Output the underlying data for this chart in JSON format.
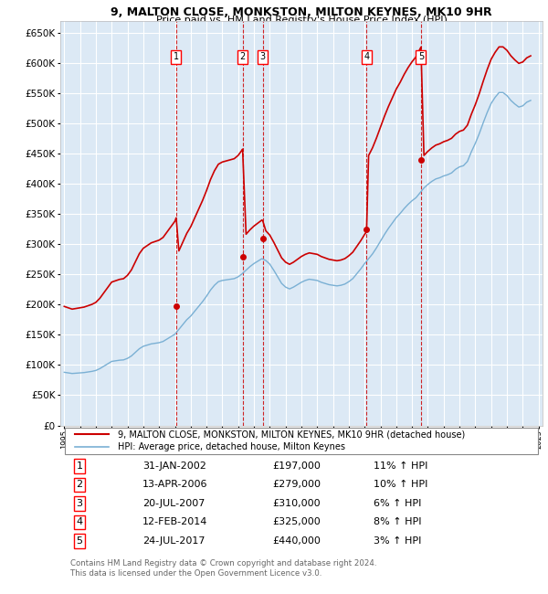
{
  "title": "9, MALTON CLOSE, MONKSTON, MILTON KEYNES, MK10 9HR",
  "subtitle": "Price paid vs. HM Land Registry's House Price Index (HPI)",
  "ylim": [
    0,
    670000
  ],
  "yticks": [
    0,
    50000,
    100000,
    150000,
    200000,
    250000,
    300000,
    350000,
    400000,
    450000,
    500000,
    550000,
    600000,
    650000
  ],
  "xlim_start": 1994.75,
  "xlim_end": 2025.25,
  "plot_bg": "#dce9f5",
  "grid_color": "#ffffff",
  "sale_color": "#cc0000",
  "hpi_color": "#7ab0d4",
  "transactions": [
    {
      "num": 1,
      "date_dec": 2002.08,
      "price": 197000
    },
    {
      "num": 2,
      "date_dec": 2006.28,
      "price": 279000
    },
    {
      "num": 3,
      "date_dec": 2007.55,
      "price": 310000
    },
    {
      "num": 4,
      "date_dec": 2014.12,
      "price": 325000
    },
    {
      "num": 5,
      "date_dec": 2017.56,
      "price": 440000
    }
  ],
  "table_rows": [
    {
      "num": 1,
      "date": "31-JAN-2002",
      "price": "£197,000",
      "hpi": "11% ↑ HPI"
    },
    {
      "num": 2,
      "date": "13-APR-2006",
      "price": "£279,000",
      "hpi": "10% ↑ HPI"
    },
    {
      "num": 3,
      "date": "20-JUL-2007",
      "price": "£310,000",
      "hpi": "6% ↑ HPI"
    },
    {
      "num": 4,
      "date": "12-FEB-2014",
      "price": "£325,000",
      "hpi": "8% ↑ HPI"
    },
    {
      "num": 5,
      "date": "24-JUL-2017",
      "price": "£440,000",
      "hpi": "3% ↑ HPI"
    }
  ],
  "legend_house": "9, MALTON CLOSE, MONKSTON, MILTON KEYNES, MK10 9HR (detached house)",
  "legend_hpi": "HPI: Average price, detached house, Milton Keynes",
  "footer": "Contains HM Land Registry data © Crown copyright and database right 2024.\nThis data is licensed under the Open Government Licence v3.0.",
  "hpi_data": {
    "years": [
      1995.0,
      1995.25,
      1995.5,
      1995.75,
      1996.0,
      1996.25,
      1996.5,
      1996.75,
      1997.0,
      1997.25,
      1997.5,
      1997.75,
      1998.0,
      1998.25,
      1998.5,
      1998.75,
      1999.0,
      1999.25,
      1999.5,
      1999.75,
      2000.0,
      2000.25,
      2000.5,
      2000.75,
      2001.0,
      2001.25,
      2001.5,
      2001.75,
      2002.0,
      2002.25,
      2002.5,
      2002.75,
      2003.0,
      2003.25,
      2003.5,
      2003.75,
      2004.0,
      2004.25,
      2004.5,
      2004.75,
      2005.0,
      2005.25,
      2005.5,
      2005.75,
      2006.0,
      2006.25,
      2006.5,
      2006.75,
      2007.0,
      2007.25,
      2007.5,
      2007.75,
      2008.0,
      2008.25,
      2008.5,
      2008.75,
      2009.0,
      2009.25,
      2009.5,
      2009.75,
      2010.0,
      2010.25,
      2010.5,
      2010.75,
      2011.0,
      2011.25,
      2011.5,
      2011.75,
      2012.0,
      2012.25,
      2012.5,
      2012.75,
      2013.0,
      2013.25,
      2013.5,
      2013.75,
      2014.0,
      2014.25,
      2014.5,
      2014.75,
      2015.0,
      2015.25,
      2015.5,
      2015.75,
      2016.0,
      2016.25,
      2016.5,
      2016.75,
      2017.0,
      2017.25,
      2017.5,
      2017.75,
      2018.0,
      2018.25,
      2018.5,
      2018.75,
      2019.0,
      2019.25,
      2019.5,
      2019.75,
      2020.0,
      2020.25,
      2020.5,
      2020.75,
      2021.0,
      2021.25,
      2021.5,
      2021.75,
      2022.0,
      2022.25,
      2022.5,
      2022.75,
      2023.0,
      2023.25,
      2023.5,
      2023.75,
      2024.0,
      2024.25,
      2024.5
    ],
    "values": [
      88000,
      87000,
      86000,
      86500,
      87000,
      87500,
      88500,
      89500,
      91000,
      94000,
      98000,
      102000,
      106000,
      107000,
      108000,
      108500,
      111000,
      115000,
      121000,
      127000,
      131000,
      133000,
      135000,
      136000,
      137000,
      139000,
      143000,
      147000,
      151000,
      159000,
      167000,
      175000,
      181000,
      189000,
      197000,
      205000,
      214000,
      224000,
      232000,
      238000,
      240000,
      241000,
      242000,
      243000,
      246000,
      251000,
      257000,
      263000,
      268000,
      272000,
      276000,
      273000,
      267000,
      257000,
      246000,
      235000,
      229000,
      226000,
      229000,
      233000,
      237000,
      240000,
      242000,
      241000,
      240000,
      237000,
      235000,
      233000,
      232000,
      231000,
      232000,
      234000,
      238000,
      243000,
      251000,
      259000,
      268000,
      276000,
      284000,
      294000,
      305000,
      316000,
      326000,
      335000,
      344000,
      351000,
      359000,
      366000,
      372000,
      377000,
      385000,
      393000,
      399000,
      404000,
      408000,
      410000,
      413000,
      415000,
      418000,
      424000,
      428000,
      430000,
      437000,
      453000,
      467000,
      483000,
      501000,
      518000,
      533000,
      543000,
      551000,
      551000,
      546000,
      538000,
      532000,
      527000,
      529000,
      535000,
      538000
    ]
  }
}
